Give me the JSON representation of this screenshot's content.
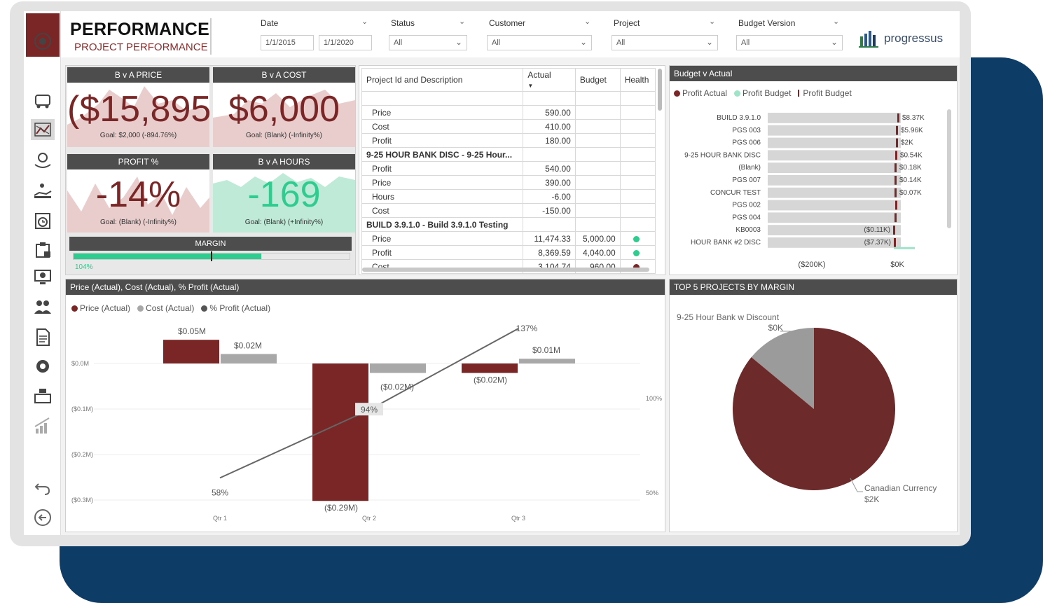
{
  "header": {
    "title": "PERFORMANCE",
    "subtitle": "PROJECT PERFORMANCE",
    "brand": "progressus",
    "filters": {
      "date_label": "Date",
      "date_from": "1/1/2015",
      "date_to": "1/1/2020",
      "status_label": "Status",
      "status_value": "All",
      "customer_label": "Customer",
      "customer_value": "All",
      "project_label": "Project",
      "project_value": "All",
      "budget_label": "Budget Version",
      "budget_value": "All"
    }
  },
  "sidebar": {
    "icons": [
      "gear-target-icon",
      "truck-icon",
      "chart-x-icon",
      "money-hands-icon",
      "hand-money-icon",
      "clock-icon",
      "clipboard-lock-icon",
      "monitor-gear-icon",
      "people-icon",
      "document-icon",
      "gear-icon",
      "cash-register-icon",
      "growth-chart-icon",
      "undo-icon",
      "back-arrow-icon"
    ]
  },
  "kpis": {
    "price": {
      "title": "B v A PRICE",
      "value": "($15,895)",
      "goal": "Goal: $2,000 (-894.76%)"
    },
    "cost": {
      "title": "B v A COST",
      "value": "$6,000",
      "goal": "Goal: (Blank) (-Infinity%)"
    },
    "profit": {
      "title": "PROFIT %",
      "value": "-14%",
      "goal": "Goal: (Blank) (-Infinity%)"
    },
    "hours": {
      "title": "B v A HOURS",
      "value": "-169",
      "goal": "Goal: (Blank) (+Infinity%)"
    },
    "margin": {
      "title": "MARGIN",
      "value": "104%",
      "fill": 0.68
    }
  },
  "table": {
    "headers": [
      "Project Id and Description",
      "Actual",
      "Budget",
      "Health"
    ],
    "rows": [
      {
        "label": "Price",
        "actual": "590.00",
        "budget": "",
        "health": "",
        "group": false
      },
      {
        "label": "Cost",
        "actual": "410.00",
        "budget": "",
        "health": "",
        "group": false
      },
      {
        "label": "Profit",
        "actual": "180.00",
        "budget": "",
        "health": "",
        "group": false
      },
      {
        "label": "9-25 HOUR BANK DISC - 9-25 Hour...",
        "actual": "",
        "budget": "",
        "health": "",
        "group": true
      },
      {
        "label": "Profit",
        "actual": "540.00",
        "budget": "",
        "health": "",
        "group": false
      },
      {
        "label": "Price",
        "actual": "390.00",
        "budget": "",
        "health": "",
        "group": false
      },
      {
        "label": "Hours",
        "actual": "-6.00",
        "budget": "",
        "health": "",
        "group": false
      },
      {
        "label": "Cost",
        "actual": "-150.00",
        "budget": "",
        "health": "",
        "group": false
      },
      {
        "label": "BUILD 3.9.1.0 - Build 3.9.1.0 Testing",
        "actual": "",
        "budget": "",
        "health": "",
        "group": true
      },
      {
        "label": "Price",
        "actual": "11,474.33",
        "budget": "5,000.00",
        "health": "#2ecc8f",
        "group": false
      },
      {
        "label": "Profit",
        "actual": "8,369.59",
        "budget": "4,040.00",
        "health": "#2ecc8f",
        "group": false
      },
      {
        "label": "Cost",
        "actual": "3,104.74",
        "budget": "960.00",
        "health": "#7b2626",
        "group": false
      }
    ]
  },
  "budget_chart": {
    "title": "Budget v Actual",
    "legend": [
      "Profit Actual",
      "Profit Budget",
      "Profit Budget"
    ],
    "axis": [
      "($200K)",
      "$0K"
    ],
    "chart_data": {
      "type": "bar",
      "categories": [
        "BUILD 3.9.1.0",
        "PGS 003",
        "PGS 006",
        "9-25 HOUR BANK DISC",
        "(Blank)",
        "PGS 007",
        "CONCUR TEST",
        "PGS 002",
        "PGS 004",
        "KB0003",
        "HOUR BANK #2 DISC"
      ],
      "labels": [
        "$8.37K",
        "$5.96K",
        "$2K",
        "$0.54K",
        "$0.18K",
        "$0.14K",
        "$0.07K",
        "",
        "",
        "($0.11K)",
        "($7.37K)"
      ]
    }
  },
  "combo_chart": {
    "title": "Price (Actual), Cost (Actual), % Profit (Actual)",
    "legend": [
      "Price (Actual)",
      "Cost (Actual)",
      "% Profit (Actual)"
    ],
    "chart_data": {
      "type": "bar",
      "categories": [
        "Qtr 1",
        "Qtr 2",
        "Qtr 3"
      ],
      "series": [
        {
          "name": "Price (Actual)",
          "values": [
            0.05,
            -0.29,
            -0.02
          ],
          "labels": [
            "$0.05M",
            "($0.29M)",
            "($0.02M)"
          ]
        },
        {
          "name": "Cost (Actual)",
          "values": [
            0.02,
            -0.02,
            0.01
          ],
          "labels": [
            "$0.02M",
            "($0.02M)",
            "$0.01M"
          ]
        },
        {
          "name": "% Profit (Actual)",
          "values": [
            58,
            94,
            137
          ],
          "labels": [
            "58%",
            "94%",
            "137%"
          ]
        }
      ],
      "y_ticks": [
        "$0.0M",
        "($0.1M)",
        "($0.2M)",
        "($0.3M)"
      ],
      "y2_ticks": [
        "100%",
        "50%"
      ]
    }
  },
  "pie_chart": {
    "title": "TOP 5 PROJECTS BY MARGIN",
    "chart_data": {
      "type": "pie",
      "slices": [
        {
          "label": "9-25 Hour Bank w Discount",
          "value_label": "$0K",
          "share": 0.14,
          "color": "#9b9b9b"
        },
        {
          "label": "Canadian Currency",
          "value_label": "$2K",
          "share": 0.86,
          "color": "#6d2a2a"
        }
      ]
    }
  }
}
